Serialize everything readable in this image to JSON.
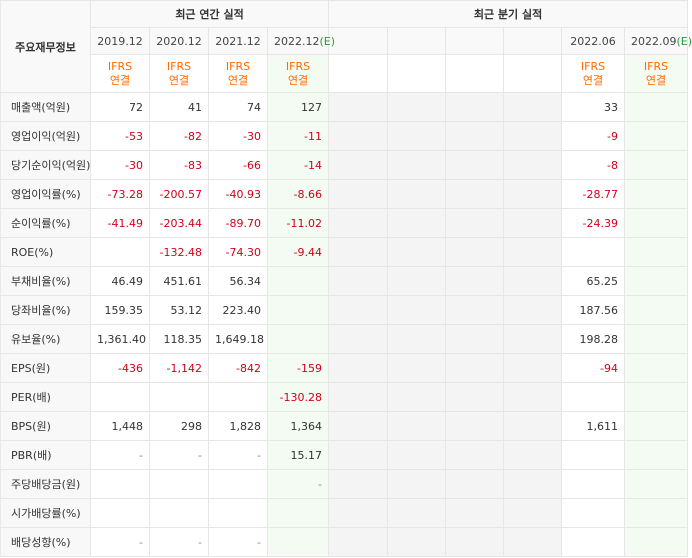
{
  "header": {
    "corner_label": "주요재무정보",
    "annual_title": "최근 연간 실적",
    "quarter_title": "최근 분기 실적",
    "annual_periods": [
      "2019.12",
      "2020.12",
      "2021.12",
      "2022.12(E)"
    ],
    "quarter_periods": [
      "",
      "",
      "",
      "",
      "2022.06",
      "2022.09(E)"
    ],
    "annual_basis": [
      "IFRS\n연결",
      "IFRS\n연결",
      "IFRS\n연결",
      "IFRS\n연결"
    ],
    "quarter_basis": [
      "",
      "",
      "",
      "",
      "IFRS\n연결",
      "IFRS\n연결"
    ]
  },
  "rows": [
    {
      "label": "매출액(억원)",
      "annual": [
        "72",
        "41",
        "74",
        "127"
      ],
      "quarter": [
        "",
        "",
        "",
        "",
        "33",
        ""
      ]
    },
    {
      "label": "영업이익(억원)",
      "annual": [
        "-53",
        "-82",
        "-30",
        "-11"
      ],
      "quarter": [
        "",
        "",
        "",
        "",
        "-9",
        ""
      ]
    },
    {
      "label": "당기순이익(억원)",
      "annual": [
        "-30",
        "-83",
        "-66",
        "-14"
      ],
      "quarter": [
        "",
        "",
        "",
        "",
        "-8",
        ""
      ]
    },
    {
      "label": "영업이익률(%)",
      "annual": [
        "-73.28",
        "-200.57",
        "-40.93",
        "-8.66"
      ],
      "quarter": [
        "",
        "",
        "",
        "",
        "-28.77",
        ""
      ]
    },
    {
      "label": "순이익률(%)",
      "annual": [
        "-41.49",
        "-203.44",
        "-89.70",
        "-11.02"
      ],
      "quarter": [
        "",
        "",
        "",
        "",
        "-24.39",
        ""
      ]
    },
    {
      "label": "ROE(%)",
      "annual": [
        "",
        "-132.48",
        "-74.30",
        "-9.44"
      ],
      "quarter": [
        "",
        "",
        "",
        "",
        "",
        ""
      ]
    },
    {
      "label": "부채비율(%)",
      "annual": [
        "46.49",
        "451.61",
        "56.34",
        ""
      ],
      "quarter": [
        "",
        "",
        "",
        "",
        "65.25",
        ""
      ]
    },
    {
      "label": "당좌비율(%)",
      "annual": [
        "159.35",
        "53.12",
        "223.40",
        ""
      ],
      "quarter": [
        "",
        "",
        "",
        "",
        "187.56",
        ""
      ]
    },
    {
      "label": "유보율(%)",
      "annual": [
        "1,361.40",
        "118.35",
        "1,649.18",
        ""
      ],
      "quarter": [
        "",
        "",
        "",
        "",
        "198.28",
        ""
      ]
    },
    {
      "label": "EPS(원)",
      "annual": [
        "-436",
        "-1,142",
        "-842",
        "-159"
      ],
      "quarter": [
        "",
        "",
        "",
        "",
        "-94",
        ""
      ]
    },
    {
      "label": "PER(배)",
      "annual": [
        "",
        "",
        "",
        "-130.28"
      ],
      "quarter": [
        "",
        "",
        "",
        "",
        "",
        ""
      ]
    },
    {
      "label": "BPS(원)",
      "annual": [
        "1,448",
        "298",
        "1,828",
        "1,364"
      ],
      "quarter": [
        "",
        "",
        "",
        "",
        "1,611",
        ""
      ]
    },
    {
      "label": "PBR(배)",
      "annual": [
        "-",
        "-",
        "-",
        "15.17"
      ],
      "quarter": [
        "",
        "",
        "",
        "",
        "",
        ""
      ]
    },
    {
      "label": "주당배당금(원)",
      "annual": [
        "",
        "",
        "",
        "-"
      ],
      "quarter": [
        "",
        "",
        "",
        "",
        "",
        ""
      ]
    },
    {
      "label": "시가배당률(%)",
      "annual": [
        "",
        "",
        "",
        ""
      ],
      "quarter": [
        "",
        "",
        "",
        "",
        "",
        ""
      ]
    },
    {
      "label": "배당성향(%)",
      "annual": [
        "-",
        "-",
        "-",
        ""
      ],
      "quarter": [
        "",
        "",
        "",
        "",
        "",
        ""
      ]
    }
  ],
  "colors": {
    "negative": "#d0021b",
    "basis": "#ff6a00",
    "estimate_bg": "#f4fbf3"
  }
}
